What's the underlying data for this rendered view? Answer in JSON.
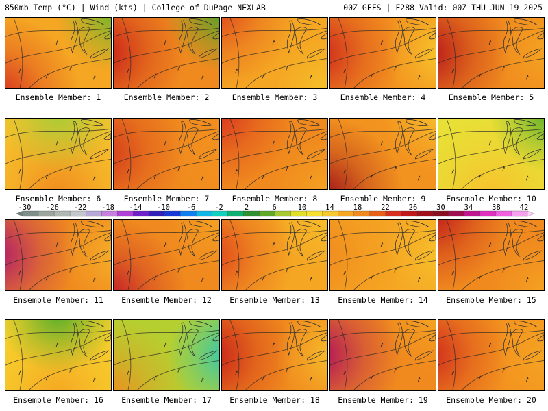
{
  "header": {
    "left": "850mb Temp (°C) | Wind (kts) | College of DuPage NEXLAB",
    "right": "00Z GEFS | F288 Valid: 00Z THU JUN 19 2025"
  },
  "members": [
    {
      "label": "Ensemble Member: 1",
      "base": "#f5a623",
      "warm": "#d7301f",
      "cool": "#6ab82a",
      "warm_pos": "sw",
      "cool_pos": "ne"
    },
    {
      "label": "Ensemble Member: 2",
      "base": "#f08a1e",
      "warm": "#c8201a",
      "cool": "#4ca42a",
      "warm_pos": "w",
      "cool_pos": "ne"
    },
    {
      "label": "Ensemble Member: 3",
      "base": "#f5a623",
      "warm": "#e0461c",
      "cool": "#f6c52a",
      "warm_pos": "nw",
      "cool_pos": "se"
    },
    {
      "label": "Ensemble Member: 4",
      "base": "#f3931f",
      "warm": "#cf2a1c",
      "cool": "#f8c82c",
      "warm_pos": "w",
      "cool_pos": "e"
    },
    {
      "label": "Ensemble Member: 5",
      "base": "#f08a1e",
      "warm": "#b8181a",
      "cool": "#f5a623",
      "warm_pos": "w",
      "cool_pos": "e"
    },
    {
      "label": "Ensemble Member: 6",
      "base": "#f7c12c",
      "warm": "#f08a1e",
      "cool": "#a6cc36",
      "warm_pos": "s",
      "cool_pos": "n"
    },
    {
      "label": "Ensemble Member: 7",
      "base": "#f08a1e",
      "warm": "#d33a1c",
      "cool": "#f3931f",
      "warm_pos": "w",
      "cool_pos": "e"
    },
    {
      "label": "Ensemble Member: 8",
      "base": "#f08a1e",
      "warm": "#d7301f",
      "cool": "#f5a623",
      "warm_pos": "nw",
      "cool_pos": "se"
    },
    {
      "label": "Ensemble Member: 9",
      "base": "#f3931f",
      "warm": "#a0121a",
      "cool": "#f7c12c",
      "warm_pos": "sw",
      "cool_pos": "ne"
    },
    {
      "label": "Ensemble Member: 10",
      "base": "#e8e036",
      "warm": "#f7c12c",
      "cool": "#58ae2a",
      "warm_pos": "s",
      "cool_pos": "ne"
    },
    {
      "label": "Ensemble Member: 11",
      "base": "#f08a1e",
      "warm": "#b01a6a",
      "cool": "#f5b12a",
      "warm_pos": "w",
      "cool_pos": "e"
    },
    {
      "label": "Ensemble Member: 12",
      "base": "#f08a1e",
      "warm": "#c0182a",
      "cool": "#f5a623",
      "warm_pos": "sw",
      "cool_pos": "ne"
    },
    {
      "label": "Ensemble Member: 13",
      "base": "#f5a623",
      "warm": "#e0461c",
      "cool": "#f7c12c",
      "warm_pos": "w",
      "cool_pos": "ne"
    },
    {
      "label": "Ensemble Member: 14",
      "base": "#f5a623",
      "warm": "#f08a1e",
      "cool": "#f7c12c",
      "warm_pos": "w",
      "cool_pos": "e"
    },
    {
      "label": "Ensemble Member: 15",
      "base": "#f08a1e",
      "warm": "#c0181a",
      "cool": "#f5a623",
      "warm_pos": "nw",
      "cool_pos": "se"
    },
    {
      "label": "Ensemble Member: 16",
      "base": "#f7d02c",
      "warm": "#f5a623",
      "cool": "#58ae2a",
      "warm_pos": "s",
      "cool_pos": "n"
    },
    {
      "label": "Ensemble Member: 17",
      "base": "#b6cf30",
      "warm": "#f08a1e",
      "cool": "#30c8b0",
      "warm_pos": "sw",
      "cool_pos": "e"
    },
    {
      "label": "Ensemble Member: 18",
      "base": "#f08a1e",
      "warm": "#c8201a",
      "cool": "#f7c12c",
      "warm_pos": "w",
      "cool_pos": "e"
    },
    {
      "label": "Ensemble Member: 19",
      "base": "#f08a1e",
      "warm": "#b0125a",
      "cool": "#f5a623",
      "warm_pos": "w",
      "cool_pos": "ne"
    },
    {
      "label": "Ensemble Member: 20",
      "base": "#f3931f",
      "warm": "#cf2a1c",
      "cool": "#f5a623",
      "warm_pos": "w",
      "cool_pos": "e"
    }
  ],
  "colorbar": {
    "labels": [
      "-30",
      "-26",
      "-22",
      "-18",
      "-14",
      "-10",
      "-6",
      "-2",
      "2",
      "6",
      "10",
      "14",
      "18",
      "22",
      "26",
      "30",
      "34",
      "38",
      "42"
    ],
    "colors": [
      "#7f8f8a",
      "#9aa69e",
      "#b0b8b4",
      "#c4c8cc",
      "#b8a8d8",
      "#c880e0",
      "#b040d8",
      "#7020c8",
      "#3020b8",
      "#1838d8",
      "#1080f0",
      "#10b8e8",
      "#10d0c0",
      "#10b070",
      "#309030",
      "#60a828",
      "#a8c830",
      "#e0e028",
      "#f8e030",
      "#f8c830",
      "#f5a623",
      "#f08a1e",
      "#e86018",
      "#d7301f",
      "#c0181a",
      "#a0101a",
      "#881020",
      "#a01050",
      "#c01890",
      "#e030c0",
      "#f060e0",
      "#f8a0f0"
    ]
  }
}
